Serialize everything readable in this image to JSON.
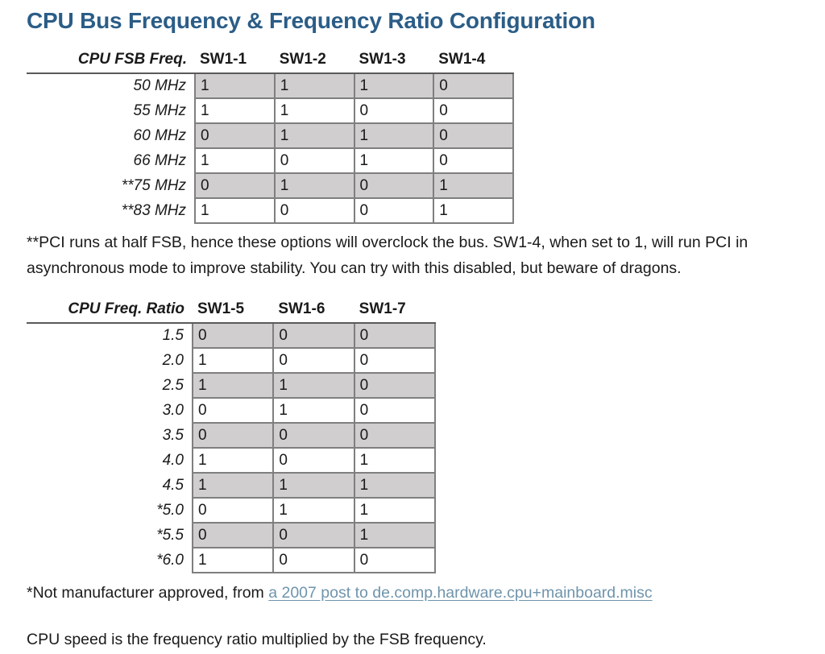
{
  "title": "CPU Bus Frequency & Frequency Ratio Configuration",
  "colors": {
    "title": "#2b5d87",
    "link": "#6f94ac",
    "row_shade": "#d0cece",
    "cell_border": "#7f7f7f",
    "header_rule": "#5a5a5a",
    "text": "#1a1a1a",
    "background": "#ffffff"
  },
  "fsb_table": {
    "columns": [
      "CPU FSB Freq.",
      "SW1-1",
      "SW1-2",
      "SW1-3",
      "SW1-4"
    ],
    "rows": [
      {
        "label": "50 MHz",
        "values": [
          "1",
          "1",
          "1",
          "0"
        ]
      },
      {
        "label": "55 MHz",
        "values": [
          "1",
          "1",
          "0",
          "0"
        ]
      },
      {
        "label": "60 MHz",
        "values": [
          "0",
          "1",
          "1",
          "0"
        ]
      },
      {
        "label": "66 MHz",
        "values": [
          "1",
          "0",
          "1",
          "0"
        ]
      },
      {
        "label": "**75 MHz",
        "values": [
          "0",
          "1",
          "0",
          "1"
        ]
      },
      {
        "label": "**83 MHz",
        "values": [
          "1",
          "0",
          "0",
          "1"
        ]
      }
    ]
  },
  "fsb_footnote": "**PCI runs at half FSB, hence these options will overclock the bus. SW1-4, when set to 1, will run PCI in asynchronous mode to improve stability. You can try with this disabled, but beware of dragons.",
  "ratio_table": {
    "columns": [
      "CPU Freq. Ratio",
      "SW1-5",
      "SW1-6",
      "SW1-7"
    ],
    "rows": [
      {
        "label": "1.5",
        "values": [
          "0",
          "0",
          "0"
        ]
      },
      {
        "label": "2.0",
        "values": [
          "1",
          "0",
          "0"
        ]
      },
      {
        "label": "2.5",
        "values": [
          "1",
          "1",
          "0"
        ]
      },
      {
        "label": "3.0",
        "values": [
          "0",
          "1",
          "0"
        ]
      },
      {
        "label": "3.5",
        "values": [
          "0",
          "0",
          "0"
        ]
      },
      {
        "label": "4.0",
        "values": [
          "1",
          "0",
          "1"
        ]
      },
      {
        "label": "4.5",
        "values": [
          "1",
          "1",
          "1"
        ]
      },
      {
        "label": "*5.0",
        "values": [
          "0",
          "1",
          "1"
        ]
      },
      {
        "label": "*5.5",
        "values": [
          "0",
          "0",
          "1"
        ]
      },
      {
        "label": "*6.0",
        "values": [
          "1",
          "0",
          "0"
        ]
      }
    ]
  },
  "ratio_footnote": {
    "text": "*Not manufacturer approved, from ",
    "link_text": "a 2007 post to de.comp.hardware.cpu+mainboard.misc"
  },
  "cpu_speed_note": "CPU speed is the frequency ratio multiplied by the FSB frequency."
}
